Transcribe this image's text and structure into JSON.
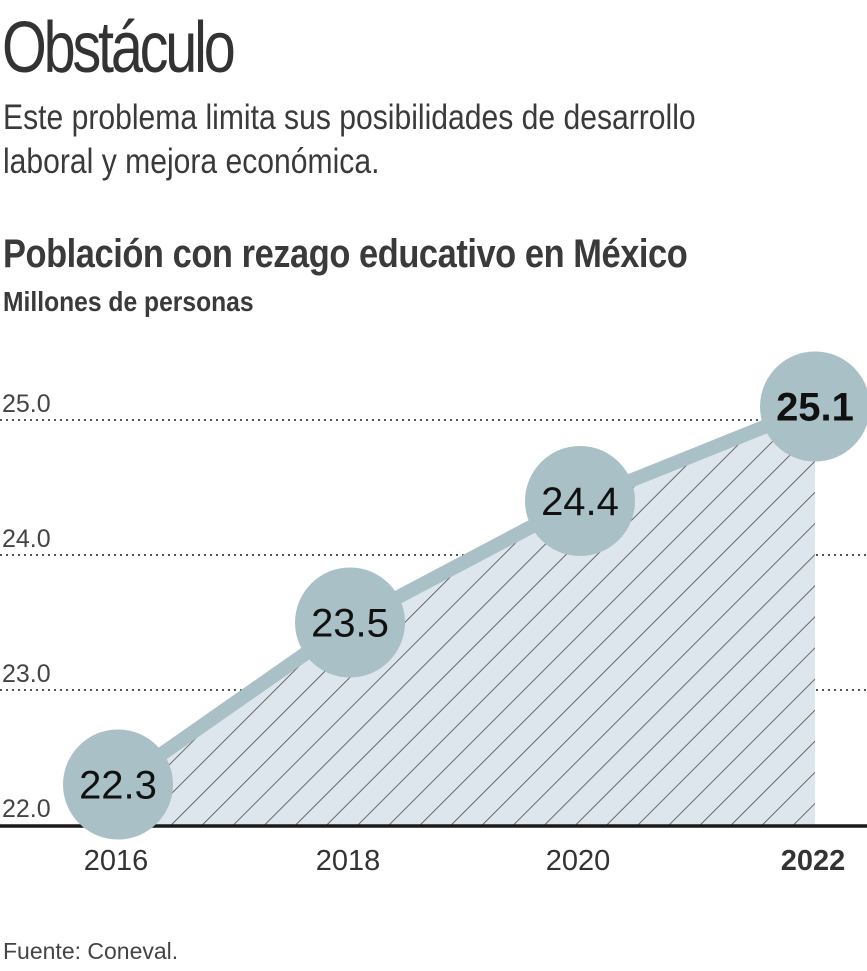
{
  "header": {
    "headline": "Obstáculo",
    "subhead_line1": "Este problema limita sus posibilidades de desarrollo",
    "subhead_line2": "laboral y mejora económica."
  },
  "colors": {
    "marker": "#a9c0c7",
    "area_fill": "#dde6ec",
    "hatch": "#4a4a4a",
    "text": "#333333",
    "axis": "#1a1a1a"
  },
  "chart_data": {
    "type": "area",
    "title": "Población con rezago educativo en México",
    "ylabel": "Millones de personas",
    "xlabel": "",
    "categories": [
      "2016",
      "2018",
      "2020",
      "2022"
    ],
    "values": [
      22.3,
      23.5,
      24.4,
      25.1
    ],
    "value_labels": [
      "22.3",
      "23.5",
      "24.4",
      "25.1"
    ],
    "highlight_last": true,
    "ylim": [
      22.0,
      25.0
    ],
    "yticks": [
      22.0,
      23.0,
      24.0,
      25.0
    ],
    "ytick_labels": [
      "22.0",
      "23.0",
      "24.0",
      "25.0"
    ],
    "grid": "dotted"
  },
  "footer": {
    "source": "Fuente: Coneval."
  }
}
